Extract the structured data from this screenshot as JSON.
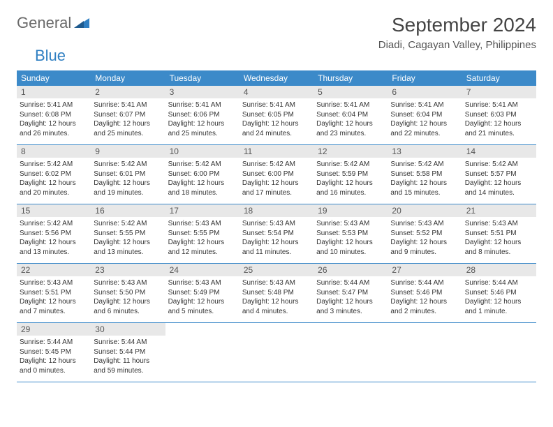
{
  "logo": {
    "part1": "General",
    "part2": "Blue"
  },
  "title": "September 2024",
  "location": "Diadi, Cagayan Valley, Philippines",
  "colors": {
    "header_bg": "#3c8ac9",
    "header_text": "#ffffff",
    "daynum_bg": "#e8e8e8",
    "body_text": "#333333",
    "logo_blue": "#2f7fc2",
    "logo_gray": "#6a6a6a",
    "row_border": "#3c8ac9"
  },
  "weekdays": [
    "Sunday",
    "Monday",
    "Tuesday",
    "Wednesday",
    "Thursday",
    "Friday",
    "Saturday"
  ],
  "weeks": [
    [
      {
        "n": "1",
        "sr": "5:41 AM",
        "ss": "6:08 PM",
        "dl1": "Daylight: 12 hours",
        "dl2": "and 26 minutes."
      },
      {
        "n": "2",
        "sr": "5:41 AM",
        "ss": "6:07 PM",
        "dl1": "Daylight: 12 hours",
        "dl2": "and 25 minutes."
      },
      {
        "n": "3",
        "sr": "5:41 AM",
        "ss": "6:06 PM",
        "dl1": "Daylight: 12 hours",
        "dl2": "and 25 minutes."
      },
      {
        "n": "4",
        "sr": "5:41 AM",
        "ss": "6:05 PM",
        "dl1": "Daylight: 12 hours",
        "dl2": "and 24 minutes."
      },
      {
        "n": "5",
        "sr": "5:41 AM",
        "ss": "6:04 PM",
        "dl1": "Daylight: 12 hours",
        "dl2": "and 23 minutes."
      },
      {
        "n": "6",
        "sr": "5:41 AM",
        "ss": "6:04 PM",
        "dl1": "Daylight: 12 hours",
        "dl2": "and 22 minutes."
      },
      {
        "n": "7",
        "sr": "5:41 AM",
        "ss": "6:03 PM",
        "dl1": "Daylight: 12 hours",
        "dl2": "and 21 minutes."
      }
    ],
    [
      {
        "n": "8",
        "sr": "5:42 AM",
        "ss": "6:02 PM",
        "dl1": "Daylight: 12 hours",
        "dl2": "and 20 minutes."
      },
      {
        "n": "9",
        "sr": "5:42 AM",
        "ss": "6:01 PM",
        "dl1": "Daylight: 12 hours",
        "dl2": "and 19 minutes."
      },
      {
        "n": "10",
        "sr": "5:42 AM",
        "ss": "6:00 PM",
        "dl1": "Daylight: 12 hours",
        "dl2": "and 18 minutes."
      },
      {
        "n": "11",
        "sr": "5:42 AM",
        "ss": "6:00 PM",
        "dl1": "Daylight: 12 hours",
        "dl2": "and 17 minutes."
      },
      {
        "n": "12",
        "sr": "5:42 AM",
        "ss": "5:59 PM",
        "dl1": "Daylight: 12 hours",
        "dl2": "and 16 minutes."
      },
      {
        "n": "13",
        "sr": "5:42 AM",
        "ss": "5:58 PM",
        "dl1": "Daylight: 12 hours",
        "dl2": "and 15 minutes."
      },
      {
        "n": "14",
        "sr": "5:42 AM",
        "ss": "5:57 PM",
        "dl1": "Daylight: 12 hours",
        "dl2": "and 14 minutes."
      }
    ],
    [
      {
        "n": "15",
        "sr": "5:42 AM",
        "ss": "5:56 PM",
        "dl1": "Daylight: 12 hours",
        "dl2": "and 13 minutes."
      },
      {
        "n": "16",
        "sr": "5:42 AM",
        "ss": "5:55 PM",
        "dl1": "Daylight: 12 hours",
        "dl2": "and 13 minutes."
      },
      {
        "n": "17",
        "sr": "5:43 AM",
        "ss": "5:55 PM",
        "dl1": "Daylight: 12 hours",
        "dl2": "and 12 minutes."
      },
      {
        "n": "18",
        "sr": "5:43 AM",
        "ss": "5:54 PM",
        "dl1": "Daylight: 12 hours",
        "dl2": "and 11 minutes."
      },
      {
        "n": "19",
        "sr": "5:43 AM",
        "ss": "5:53 PM",
        "dl1": "Daylight: 12 hours",
        "dl2": "and 10 minutes."
      },
      {
        "n": "20",
        "sr": "5:43 AM",
        "ss": "5:52 PM",
        "dl1": "Daylight: 12 hours",
        "dl2": "and 9 minutes."
      },
      {
        "n": "21",
        "sr": "5:43 AM",
        "ss": "5:51 PM",
        "dl1": "Daylight: 12 hours",
        "dl2": "and 8 minutes."
      }
    ],
    [
      {
        "n": "22",
        "sr": "5:43 AM",
        "ss": "5:51 PM",
        "dl1": "Daylight: 12 hours",
        "dl2": "and 7 minutes."
      },
      {
        "n": "23",
        "sr": "5:43 AM",
        "ss": "5:50 PM",
        "dl1": "Daylight: 12 hours",
        "dl2": "and 6 minutes."
      },
      {
        "n": "24",
        "sr": "5:43 AM",
        "ss": "5:49 PM",
        "dl1": "Daylight: 12 hours",
        "dl2": "and 5 minutes."
      },
      {
        "n": "25",
        "sr": "5:43 AM",
        "ss": "5:48 PM",
        "dl1": "Daylight: 12 hours",
        "dl2": "and 4 minutes."
      },
      {
        "n": "26",
        "sr": "5:44 AM",
        "ss": "5:47 PM",
        "dl1": "Daylight: 12 hours",
        "dl2": "and 3 minutes."
      },
      {
        "n": "27",
        "sr": "5:44 AM",
        "ss": "5:46 PM",
        "dl1": "Daylight: 12 hours",
        "dl2": "and 2 minutes."
      },
      {
        "n": "28",
        "sr": "5:44 AM",
        "ss": "5:46 PM",
        "dl1": "Daylight: 12 hours",
        "dl2": "and 1 minute."
      }
    ],
    [
      {
        "n": "29",
        "sr": "5:44 AM",
        "ss": "5:45 PM",
        "dl1": "Daylight: 12 hours",
        "dl2": "and 0 minutes."
      },
      {
        "n": "30",
        "sr": "5:44 AM",
        "ss": "5:44 PM",
        "dl1": "Daylight: 11 hours",
        "dl2": "and 59 minutes."
      },
      null,
      null,
      null,
      null,
      null
    ]
  ]
}
